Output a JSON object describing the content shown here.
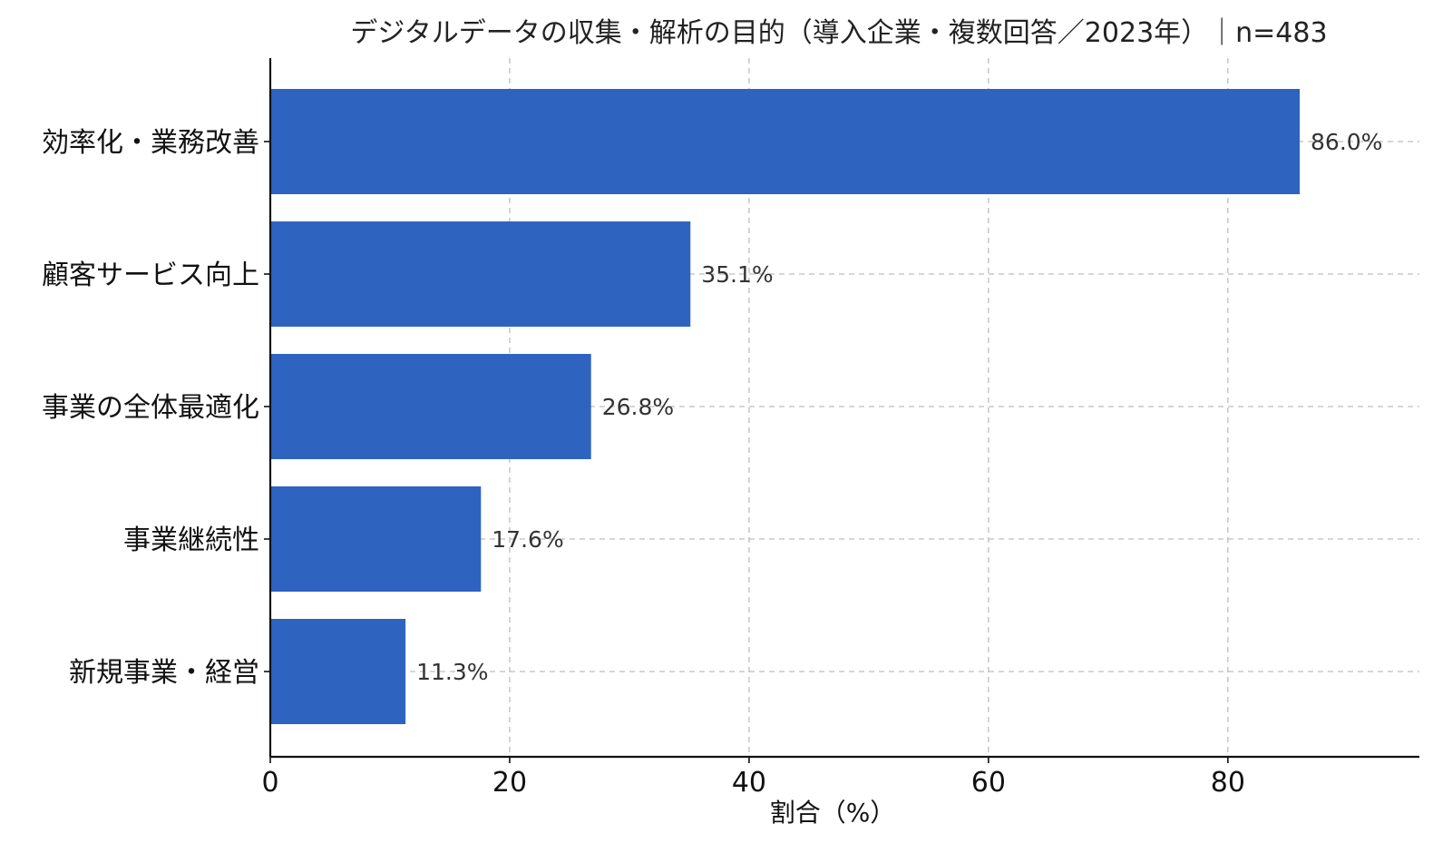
{
  "chart_data": {
    "type": "bar",
    "orientation": "horizontal",
    "title": "デジタルデータの収集・解析の目的（導入企業・複数回答／2023年）｜n=483",
    "xlabel": "割合（%）",
    "ylabel": "",
    "categories": [
      "効率化・業務改善",
      "顧客サービス向上",
      "事業の全体最適化",
      "事業継続性",
      "新規事業・経営"
    ],
    "values": [
      86.0,
      35.1,
      26.8,
      17.6,
      11.3
    ],
    "value_labels": [
      "86.0%",
      "35.1%",
      "26.8%",
      "17.6%",
      "11.3%"
    ],
    "xlim": [
      0,
      96
    ],
    "xticks": [
      0,
      20,
      40,
      60,
      80
    ],
    "xtick_labels": [
      "0",
      "20",
      "40",
      "60",
      "80"
    ],
    "grid": true,
    "bar_color": "#2f63c0"
  }
}
